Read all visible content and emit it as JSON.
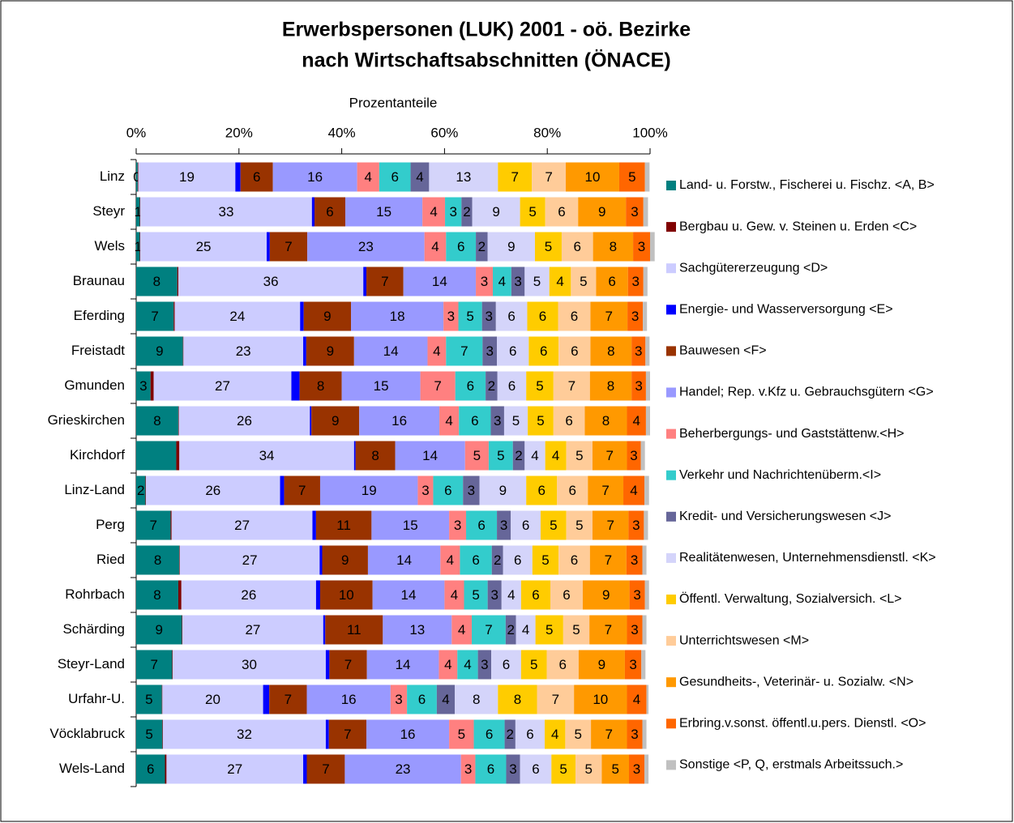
{
  "chart_data": {
    "type": "stacked-bar-horizontal",
    "title": "Erwerbspersonen (LUK) 2001 - oö. Bezirke",
    "subtitle": "nach Wirtschaftsabschnitten (ÖNACE)",
    "x_label": "Prozentanteile",
    "xlim": [
      0,
      100
    ],
    "xticks": [
      {
        "value": 0,
        "label": "0%"
      },
      {
        "value": 20,
        "label": "20%"
      },
      {
        "value": 40,
        "label": "40%"
      },
      {
        "value": 60,
        "label": "60%"
      },
      {
        "value": 80,
        "label": "80%"
      },
      {
        "value": 100,
        "label": "100%"
      }
    ],
    "legend": "right",
    "categories": [
      "Linz",
      "Steyr",
      "Wels",
      "Braunau",
      "Eferding",
      "Freistadt",
      "Gmunden",
      "Grieskirchen",
      "Kirchdorf",
      "Linz-Land",
      "Perg",
      "Ried",
      "Rohrbach",
      "Schärding",
      "Steyr-Land",
      "Urfahr-U.",
      "Vöcklabruck",
      "Wels-Land"
    ],
    "series": [
      {
        "name": "Land- u. Forstw., Fischerei u. Fischz. <A, B>",
        "color": "#008080",
        "values": [
          0.3,
          0.7,
          0.7,
          8.0,
          7.3,
          9.1,
          2.8,
          8.2,
          7.8,
          1.8,
          6.7,
          8.4,
          8.2,
          8.9,
          7.0,
          5.0,
          5.1,
          5.6
        ],
        "value_labels": [
          "0",
          "1",
          "1",
          "8",
          "7",
          "9",
          "3",
          "8",
          null,
          "2",
          "7",
          "8",
          "8",
          "9",
          "7",
          "5",
          "5",
          "6"
        ]
      },
      {
        "name": "Bergbau u. Gew. v. Steinen u. Erden <C>",
        "color": "#800000",
        "values": [
          0.1,
          0.1,
          0.1,
          0.2,
          0.2,
          0.1,
          0.6,
          0.1,
          0.6,
          0.1,
          0.2,
          0.1,
          0.6,
          0.1,
          0.1,
          0.1,
          0.1,
          0.3
        ]
      },
      {
        "name": "Sachgütererzeugung <D>",
        "color": "#CCCCFF",
        "values": [
          18.9,
          33.4,
          24.6,
          36.0,
          24.4,
          23.3,
          26.8,
          25.5,
          34.0,
          26.1,
          27.4,
          27.2,
          26.2,
          27.4,
          29.8,
          19.6,
          31.7,
          26.6
        ],
        "value_labels": [
          "19",
          "33",
          "25",
          "36",
          "24",
          "23",
          "27",
          "26",
          "34",
          "26",
          "27",
          "27",
          "26",
          "27",
          "30",
          "20",
          "32",
          "27"
        ]
      },
      {
        "name": "Energie- und Wasserversorgung <E>",
        "color": "#0000FF",
        "values": [
          1.0,
          0.5,
          0.6,
          0.6,
          0.7,
          0.6,
          1.6,
          0.3,
          0.3,
          0.8,
          0.7,
          0.5,
          0.8,
          0.4,
          0.7,
          1.2,
          0.6,
          0.7
        ]
      },
      {
        "name": "Bauwesen <F>",
        "color": "#993300",
        "values": [
          6.3,
          6.0,
          7.3,
          7.2,
          9.2,
          9.3,
          8.2,
          9.3,
          7.7,
          7.0,
          10.8,
          8.9,
          10.2,
          11.2,
          7.3,
          7.3,
          7.3,
          7.4
        ],
        "value_labels": [
          "6",
          "6",
          "7",
          "7",
          "9",
          "9",
          "8",
          "9",
          "8",
          "7",
          "11",
          "9",
          "10",
          "11",
          "7",
          "7",
          "7",
          "7"
        ]
      },
      {
        "name": "Handel; Rep. v.Kfz u. Gebrauchsgütern <G>",
        "color": "#9999FF",
        "values": [
          16.4,
          15.0,
          22.8,
          14.1,
          18.0,
          14.3,
          15.3,
          15.6,
          13.6,
          19.0,
          15.1,
          14.1,
          14.0,
          13.4,
          14.0,
          16.3,
          16.1,
          22.6
        ],
        "value_labels": [
          "16",
          "15",
          "23",
          "14",
          "18",
          "14",
          "15",
          "16",
          "14",
          "19",
          "15",
          "14",
          "14",
          "13",
          "14",
          "16",
          "16",
          "23"
        ]
      },
      {
        "name": "Beherbergungs- und Gaststättenw.<H>",
        "color": "#FF8080",
        "values": [
          4.3,
          4.4,
          4.2,
          3.3,
          2.9,
          3.6,
          6.8,
          3.8,
          4.6,
          3.0,
          3.3,
          3.8,
          3.8,
          3.9,
          3.6,
          3.2,
          4.8,
          2.8
        ],
        "value_labels": [
          "4",
          "4",
          "4",
          "3",
          "3",
          "4",
          "7",
          "4",
          "5",
          "3",
          "3",
          "4",
          "4",
          "4",
          "4",
          "3",
          "5",
          "3"
        ]
      },
      {
        "name": "Verkehr und Nachrichtenüberm.<I>",
        "color": "#33CCCC",
        "values": [
          6.1,
          3.2,
          5.8,
          3.6,
          4.6,
          7.1,
          5.9,
          6.2,
          4.7,
          5.8,
          6.0,
          6.2,
          4.6,
          6.6,
          4.0,
          5.8,
          6.0,
          6.0
        ],
        "value_labels": [
          "6",
          "3",
          "6",
          "4",
          "5",
          "7",
          "6",
          "6",
          "5",
          "6",
          "6",
          "6",
          "5",
          "7",
          "4",
          "6",
          "6",
          "6"
        ]
      },
      {
        "name": "Kredit- und Versicherungswesen  <J>",
        "color": "#666699",
        "values": [
          3.6,
          2.1,
          2.3,
          2.6,
          2.7,
          2.8,
          2.3,
          2.6,
          2.3,
          3.2,
          2.7,
          2.2,
          2.7,
          2.0,
          2.6,
          3.5,
          2.1,
          2.7
        ],
        "value_labels": [
          "4",
          "2",
          "2",
          "3",
          "3",
          "3",
          "2",
          "3",
          "2",
          "3",
          "3",
          "2",
          "3",
          "2",
          "3",
          "4",
          "2",
          "3"
        ]
      },
      {
        "name": "Realitätenwesen, Unternehmensdienstl. <K>",
        "color": "#D4D4FA",
        "values": [
          13.4,
          9.3,
          9.2,
          4.8,
          6.1,
          6.2,
          5.6,
          4.6,
          4.0,
          9.1,
          5.8,
          5.7,
          3.8,
          3.8,
          5.8,
          8.4,
          5.7,
          6.1
        ],
        "value_labels": [
          "13",
          "9",
          "9",
          "5",
          "6",
          "6",
          "6",
          "5",
          "4",
          "9",
          "6",
          "6",
          "4",
          "4",
          "6",
          "8",
          "6",
          "6"
        ]
      },
      {
        "name": "Öffentl. Verwaltung, Sozialversich. <L>",
        "color": "#FFCC00",
        "values": [
          6.6,
          4.9,
          5.2,
          4.2,
          6.0,
          5.8,
          5.3,
          5.0,
          4.1,
          6.0,
          5.0,
          5.1,
          5.7,
          5.4,
          5.0,
          7.6,
          4.0,
          4.7
        ],
        "value_labels": [
          "7",
          "5",
          "5",
          "4",
          "6",
          "6",
          "5",
          "5",
          "4",
          "6",
          "5",
          "5",
          "6",
          "5",
          "5",
          "8",
          "4",
          "5"
        ]
      },
      {
        "name": "Unterrichtswesen  <M>",
        "color": "#FFCC99",
        "values": [
          6.6,
          6.4,
          6.1,
          4.9,
          6.3,
          6.2,
          7.1,
          6.1,
          5.1,
          6.0,
          5.1,
          6.1,
          6.3,
          5.1,
          6.2,
          7.2,
          5.0,
          5.1
        ],
        "value_labels": [
          "7",
          "6",
          "6",
          "5",
          "6",
          "6",
          "7",
          "6",
          "5",
          "6",
          "5",
          "6",
          "6",
          "5",
          "6",
          "7",
          "5",
          "5"
        ]
      },
      {
        "name": "Gesundheits-, Veterinär- u. Sozialw. <N>",
        "color": "#FF9900",
        "values": [
          10.4,
          9.3,
          7.8,
          6.2,
          7.2,
          8.0,
          8.1,
          8.2,
          6.7,
          6.9,
          7.0,
          7.1,
          9.1,
          7.3,
          9.0,
          10.3,
          7.0,
          5.3
        ],
        "value_labels": [
          "10",
          "9",
          "8",
          "6",
          "7",
          "8",
          "8",
          "8",
          "7",
          "7",
          "7",
          "7",
          "9",
          "7",
          "9",
          "10",
          "7",
          "5"
        ]
      },
      {
        "name": "Erbring.v.sonst. öffentl.u.pers. Dienstl. <O>",
        "color": "#FF6600",
        "values": [
          5.0,
          3.4,
          3.3,
          3.0,
          3.0,
          2.7,
          2.8,
          3.7,
          2.7,
          4.1,
          3.0,
          3.1,
          3.0,
          3.0,
          3.2,
          3.8,
          3.0,
          3.0
        ],
        "value_labels": [
          "5",
          "3",
          "3",
          "3",
          "3",
          "3",
          "3",
          "4",
          "3",
          "4",
          "3",
          "3",
          "3",
          "3",
          "3",
          "4",
          "3",
          "3"
        ]
      },
      {
        "name": "Sonstige <P, Q, erstmals Arbeitssuch.>",
        "color": "#C0C0C0",
        "values": [
          0.9,
          0.9,
          0.9,
          0.8,
          0.8,
          0.8,
          0.8,
          0.8,
          0.8,
          0.9,
          0.8,
          0.8,
          0.8,
          0.8,
          0.8,
          0.4,
          0.8,
          0.8
        ]
      }
    ]
  }
}
